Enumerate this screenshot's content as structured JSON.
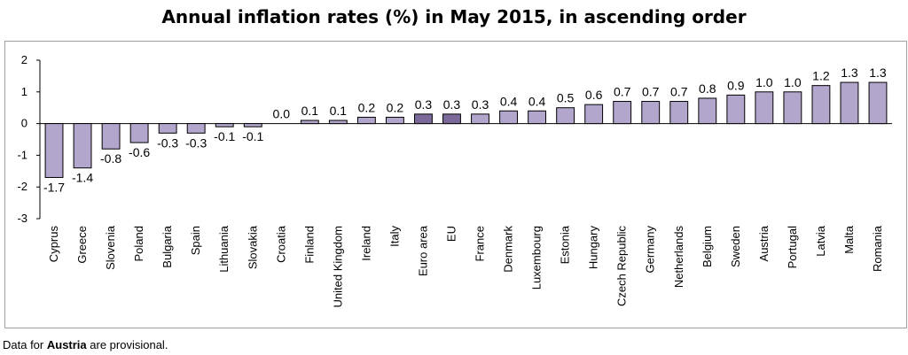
{
  "title": "Annual inflation rates (%) in May 2015, in ascending order",
  "footnote": {
    "prefix": "Data for ",
    "country": "Austria",
    "suffix": " are provisional."
  },
  "colors": {
    "bar": "#b3a6cc",
    "bar_highlight": "#7b6a99",
    "bar_stroke": "#000000",
    "axis": "#000000",
    "frame": "#a0a0a0"
  },
  "chart_data": {
    "type": "bar",
    "title": "Annual inflation rates (%) in May 2015, in ascending order",
    "xlabel": "",
    "ylabel": "",
    "ylim": [
      -3,
      2
    ],
    "yticks": [
      2,
      1,
      0,
      -1,
      -2,
      -3
    ],
    "grid": false,
    "categories": [
      "Cyprus",
      "Greece",
      "Slovenia",
      "Poland",
      "Bulgaria",
      "Spain",
      "Lithuania",
      "Slovakia",
      "Croatia",
      "Finland",
      "United Kingdom",
      "Ireland",
      "Italy",
      "Euro area",
      "EU",
      "France",
      "Denmark",
      "Luxembourg",
      "Estonia",
      "Hungary",
      "Czech Republic",
      "Germany",
      "Netherlands",
      "Belgium",
      "Sweden",
      "Austria",
      "Portugal",
      "Latvia",
      "Malta",
      "Romania"
    ],
    "values": [
      -1.7,
      -1.4,
      -0.8,
      -0.6,
      -0.3,
      -0.3,
      -0.1,
      -0.1,
      0.0,
      0.1,
      0.1,
      0.2,
      0.2,
      0.3,
      0.3,
      0.3,
      0.4,
      0.4,
      0.5,
      0.6,
      0.7,
      0.7,
      0.7,
      0.8,
      0.9,
      1.0,
      1.0,
      1.2,
      1.3,
      1.3
    ],
    "value_labels": [
      "-1.7",
      "-1.4",
      "-0.8",
      "-0.6",
      "-0.3",
      "-0.3",
      "-0.1",
      "-0.1",
      "0.0",
      "0.1",
      "0.1",
      "0.2",
      "0.2",
      "0.3",
      "0.3",
      "0.3",
      "0.4",
      "0.4",
      "0.5",
      "0.6",
      "0.7",
      "0.7",
      "0.7",
      "0.8",
      "0.9",
      "1.0",
      "1.0",
      "1.2",
      "1.3",
      "1.3"
    ],
    "highlight": [
      "Euro area",
      "EU"
    ]
  }
}
